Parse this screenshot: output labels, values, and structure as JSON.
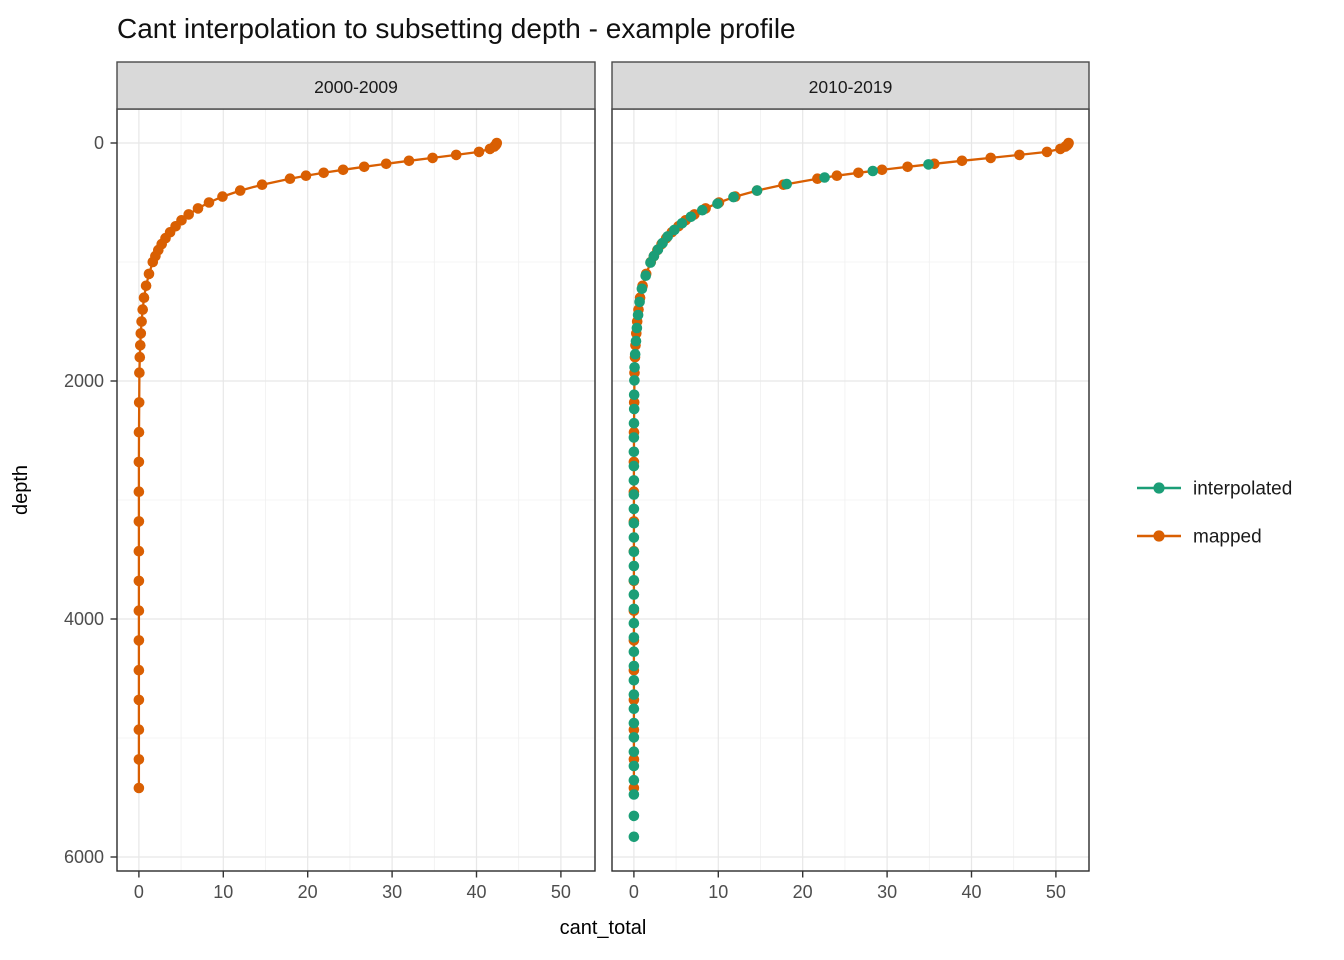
{
  "title": "Cant interpolation to subsetting depth - example profile",
  "colors": {
    "interpolated": "#1B9E77",
    "mapped": "#D95F02",
    "strip_fill": "#D9D9D9",
    "strip_border": "#4a4a4a",
    "panel_border": "#2b2b2b",
    "grid_major": "#E7E7E7",
    "grid_minor": "#F0F0F0",
    "axis_text": "#4d4d4d",
    "tick_mark": "#333333",
    "background": "#FFFFFF"
  },
  "legend": {
    "items": [
      {
        "label": "interpolated",
        "color": "#1B9E77"
      },
      {
        "label": "mapped",
        "color": "#D95F02"
      }
    ]
  },
  "chart_data": {
    "type": "scatter",
    "title": "Cant interpolation to subsetting depth - example profile",
    "xlabel": "cant_total",
    "ylabel": "depth",
    "x_ticks": [
      0,
      10,
      20,
      30,
      40,
      50
    ],
    "x_minor": [
      5,
      15,
      25,
      35,
      45
    ],
    "y_ticks": [
      0,
      2000,
      4000,
      6000
    ],
    "y_minor": [
      1000,
      3000,
      5000
    ],
    "x_range": [
      -2.6,
      54.3
    ],
    "y_range": [
      -290,
      6120
    ],
    "y_reversed": true,
    "grid": true,
    "legend_position": "right",
    "facets": [
      {
        "label": "2000-2009",
        "series": [
          {
            "name": "mapped",
            "color": "#D95F02",
            "draw_line": true,
            "points": [
              [
                42.4,
                0
              ],
              [
                42.35,
                10
              ],
              [
                42.25,
                20
              ],
              [
                42.1,
                30
              ],
              [
                41.6,
                50
              ],
              [
                40.3,
                75
              ],
              [
                37.6,
                100
              ],
              [
                34.8,
                125
              ],
              [
                32.0,
                150
              ],
              [
                29.3,
                175
              ],
              [
                26.7,
                200
              ],
              [
                24.2,
                225
              ],
              [
                21.9,
                250
              ],
              [
                19.8,
                275
              ],
              [
                17.9,
                300
              ],
              [
                14.6,
                350
              ],
              [
                12.0,
                400
              ],
              [
                9.9,
                450
              ],
              [
                8.3,
                500
              ],
              [
                7.0,
                550
              ],
              [
                5.9,
                600
              ],
              [
                5.05,
                650
              ],
              [
                4.35,
                700
              ],
              [
                3.7,
                750
              ],
              [
                3.15,
                800
              ],
              [
                2.7,
                850
              ],
              [
                2.3,
                900
              ],
              [
                1.95,
                950
              ],
              [
                1.65,
                1000
              ],
              [
                1.2,
                1100
              ],
              [
                0.85,
                1200
              ],
              [
                0.6,
                1300
              ],
              [
                0.45,
                1400
              ],
              [
                0.32,
                1500
              ],
              [
                0.23,
                1600
              ],
              [
                0.16,
                1700
              ],
              [
                0.11,
                1800
              ],
              [
                0.06,
                1930
              ],
              [
                0.03,
                2180
              ],
              [
                0.01,
                2430
              ],
              [
                0,
                2680
              ],
              [
                0,
                2930
              ],
              [
                0,
                3180
              ],
              [
                0,
                3430
              ],
              [
                0,
                3680
              ],
              [
                0,
                3930
              ],
              [
                0,
                4180
              ],
              [
                0,
                4430
              ],
              [
                0,
                4680
              ],
              [
                0,
                4930
              ],
              [
                0,
                5180
              ],
              [
                0,
                5420
              ]
            ]
          }
        ]
      },
      {
        "label": "2010-2019",
        "series": [
          {
            "name": "mapped",
            "color": "#D95F02",
            "draw_line": true,
            "points": [
              [
                51.5,
                0
              ],
              [
                51.43,
                10
              ],
              [
                51.31,
                20
              ],
              [
                51.13,
                30
              ],
              [
                50.53,
                50
              ],
              [
                48.95,
                75
              ],
              [
                45.67,
                100
              ],
              [
                42.27,
                125
              ],
              [
                38.87,
                150
              ],
              [
                35.59,
                175
              ],
              [
                32.43,
                200
              ],
              [
                29.39,
                225
              ],
              [
                26.6,
                250
              ],
              [
                24.05,
                275
              ],
              [
                21.74,
                300
              ],
              [
                17.73,
                350
              ],
              [
                14.58,
                400
              ],
              [
                12.02,
                450
              ],
              [
                10.08,
                500
              ],
              [
                8.5,
                550
              ],
              [
                7.17,
                600
              ],
              [
                6.13,
                650
              ],
              [
                5.28,
                700
              ],
              [
                4.49,
                750
              ],
              [
                3.83,
                800
              ],
              [
                3.28,
                850
              ],
              [
                2.79,
                900
              ],
              [
                2.37,
                950
              ],
              [
                2.0,
                1000
              ],
              [
                1.46,
                1100
              ],
              [
                1.03,
                1200
              ],
              [
                0.73,
                1300
              ],
              [
                0.55,
                1400
              ],
              [
                0.39,
                1500
              ],
              [
                0.28,
                1600
              ],
              [
                0.19,
                1700
              ],
              [
                0.13,
                1800
              ],
              [
                0.07,
                1930
              ],
              [
                0.04,
                2180
              ],
              [
                0.01,
                2430
              ],
              [
                0,
                2680
              ],
              [
                0,
                2930
              ],
              [
                0,
                3180
              ],
              [
                0,
                3430
              ],
              [
                0,
                3680
              ],
              [
                0,
                3930
              ],
              [
                0,
                4180
              ],
              [
                0,
                4430
              ],
              [
                0,
                4680
              ],
              [
                0,
                4930
              ],
              [
                0,
                5180
              ],
              [
                0,
                5420
              ]
            ]
          },
          {
            "name": "interpolated",
            "color": "#1B9E77",
            "draw_line": false,
            "points": [
              [
                34.9,
                180
              ],
              [
                28.3,
                235
              ],
              [
                22.6,
                290
              ],
              [
                18.1,
                345
              ],
              [
                14.6,
                400
              ],
              [
                11.8,
                455
              ],
              [
                9.9,
                510
              ],
              [
                8.1,
                565
              ],
              [
                6.75,
                620
              ],
              [
                5.7,
                675
              ],
              [
                4.8,
                730
              ],
              [
                4.0,
                785
              ],
              [
                3.4,
                840
              ],
              [
                2.85,
                895
              ],
              [
                2.37,
                950
              ],
              [
                1.97,
                1005
              ],
              [
                1.4,
                1115
              ],
              [
                0.95,
                1225
              ],
              [
                0.67,
                1335
              ],
              [
                0.5,
                1445
              ],
              [
                0.35,
                1555
              ],
              [
                0.25,
                1665
              ],
              [
                0.15,
                1775
              ],
              [
                0.08,
                1885
              ],
              [
                0.06,
                1995
              ],
              [
                0.04,
                2115
              ],
              [
                0.03,
                2235
              ],
              [
                0.01,
                2355
              ],
              [
                0,
                2475
              ],
              [
                0,
                2595
              ],
              [
                0,
                2715
              ],
              [
                0,
                2835
              ],
              [
                0,
                2955
              ],
              [
                0,
                3075
              ],
              [
                0,
                3195
              ],
              [
                0,
                3315
              ],
              [
                0,
                3435
              ],
              [
                0,
                3555
              ],
              [
                0,
                3675
              ],
              [
                0,
                3795
              ],
              [
                0,
                3915
              ],
              [
                0,
                4035
              ],
              [
                0,
                4155
              ],
              [
                0,
                4275
              ],
              [
                0,
                4395
              ],
              [
                0,
                4515
              ],
              [
                0,
                4635
              ],
              [
                0,
                4755
              ],
              [
                0,
                4875
              ],
              [
                0,
                4995
              ],
              [
                0,
                5115
              ],
              [
                0,
                5235
              ],
              [
                0,
                5355
              ],
              [
                0,
                5475
              ],
              [
                0,
                5655
              ],
              [
                0,
                5830
              ]
            ]
          }
        ]
      }
    ]
  }
}
